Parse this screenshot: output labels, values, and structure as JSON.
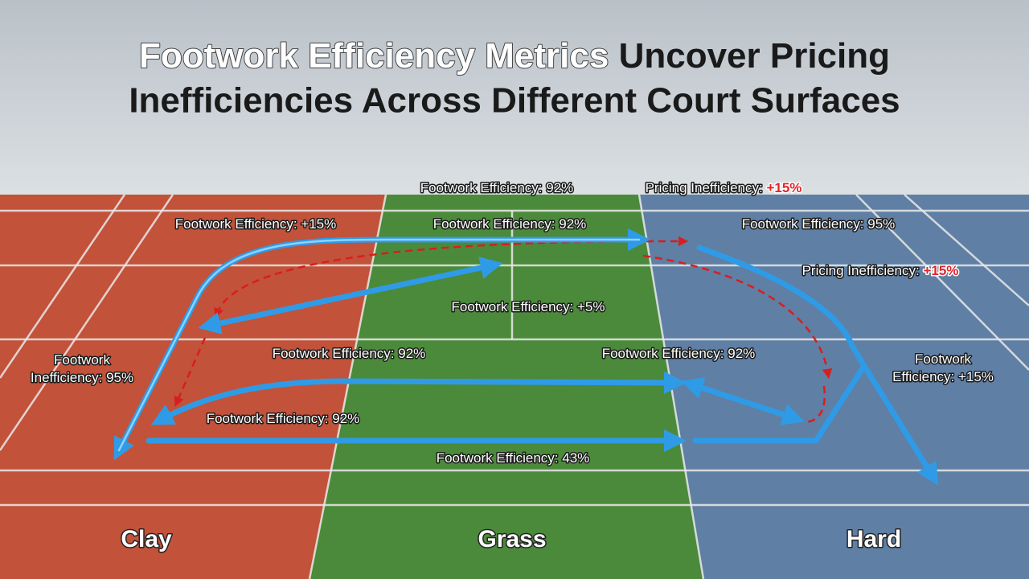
{
  "header": {
    "title_highlight": "Footwork Efficiency Metrics",
    "title_rest": "Uncover Pricing Inefficiencies Across Different Court Surfaces"
  },
  "labels": [
    {
      "lines": [
        "Footwork Efficiency: 92%"
      ]
    },
    {
      "lines": [
        "Pricing Inefficiency:"
      ],
      "highlight": "+15%"
    },
    {
      "lines": [
        "Footwork Efficiency: +15%"
      ]
    },
    {
      "lines": [
        "Footwork Efficiency: 92%"
      ]
    },
    {
      "lines": [
        "Footwork Efficiency: 95%"
      ]
    },
    {
      "lines": [
        "Pricing Inefficiency:"
      ],
      "highlight": "+15%"
    },
    {
      "lines": [
        "Footwork Efficiency: +5%"
      ]
    },
    {
      "lines": [
        "Footwork",
        "Inefficiency: 95%"
      ]
    },
    {
      "lines": [
        "Footwork Efficiency: 92%"
      ]
    },
    {
      "lines": [
        "Footwork Efficiency: 92%"
      ]
    },
    {
      "lines": [
        "Footwork",
        "Efficiency: +15%"
      ]
    },
    {
      "lines": [
        "Footwork Efficiency: 92%"
      ]
    },
    {
      "lines": [
        "Footwork Efficiency: 43%"
      ]
    }
  ],
  "surfaces": [
    "Clay",
    "Grass",
    "Hard"
  ]
}
